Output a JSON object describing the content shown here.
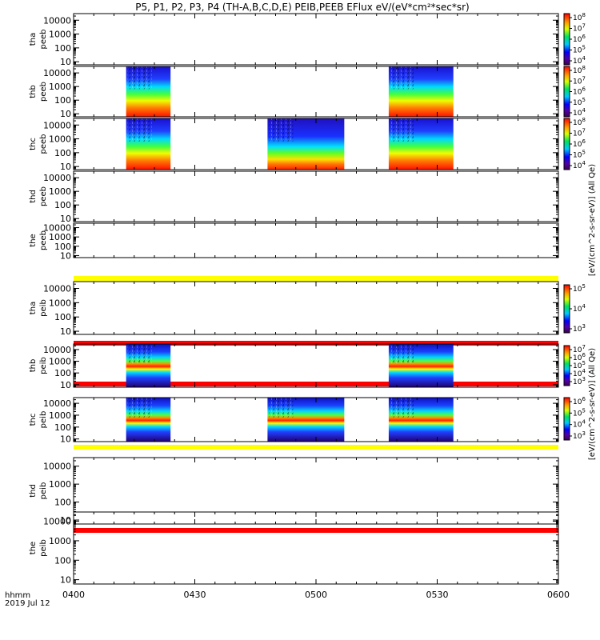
{
  "chart_data": {
    "type": "heatmap",
    "title": "P5, P1, P2, P3, P4 (TH-A,B,C,D,E) PEIB,PEEB EFlux eV/(eV*cm²*sec*sr)",
    "x_axis": {
      "label_top": "hhmm",
      "label_bottom": "2019 Jul 12",
      "range": [
        "0400",
        "0600"
      ],
      "tick_labels": [
        "0400",
        "0430",
        "0500",
        "0530",
        "0600"
      ]
    },
    "y_tick_labels": [
      "10",
      "100",
      "1000",
      "10000"
    ],
    "y_scale": "log",
    "y_range_eV": [
      6,
      30000
    ],
    "colorbar_label_electrons": "[eV/(cm^2-s-sr-eV)] (All Qe)",
    "colorbar_label_ions": "[eV/(cm^2-s-sr-eV)] (All Qe)",
    "colormap": "rainbow (violet-blue-cyan-green-yellow-red)",
    "panels": [
      {
        "probe": "tha",
        "label": "tha peeb",
        "species": "electrons",
        "bands_hhmm": [],
        "colorbar": "electrons"
      },
      {
        "probe": "thb",
        "label": "thb peeb",
        "species": "electrons",
        "bands_hhmm": [
          [
            "0413",
            "0424"
          ],
          [
            "0518",
            "0534"
          ]
        ],
        "colorbar": "electrons"
      },
      {
        "probe": "thc",
        "label": "thc peeb",
        "species": "electrons",
        "bands_hhmm": [
          [
            "0413",
            "0424"
          ],
          [
            "0448",
            "0507"
          ],
          [
            "0518",
            "0534"
          ]
        ],
        "colorbar": "electrons"
      },
      {
        "probe": "thd",
        "label": "thd peeb",
        "species": "electrons",
        "bands_hhmm": [],
        "colorbar": "none"
      },
      {
        "probe": "the",
        "label": "the peeb",
        "species": "electrons",
        "bands_hhmm": [],
        "colorbar": "none"
      },
      {
        "probe": "tha",
        "label": "tha peib",
        "species": "ions",
        "bands_hhmm": [],
        "colorbar": "ions-a"
      },
      {
        "probe": "thb",
        "label": "thb peib",
        "species": "ions",
        "bands_hhmm": [
          [
            "0413",
            "0424"
          ],
          [
            "0518",
            "0534"
          ]
        ],
        "colorbar": "ions-b"
      },
      {
        "probe": "thc",
        "label": "thc peib",
        "species": "ions",
        "bands_hhmm": [
          [
            "0413",
            "0424"
          ],
          [
            "0448",
            "0507"
          ],
          [
            "0518",
            "0534"
          ]
        ],
        "colorbar": "ions-c"
      },
      {
        "probe": "thd",
        "label": "thd peib",
        "species": "ions",
        "bands_hhmm": [],
        "colorbar": "none"
      },
      {
        "probe": "the",
        "label": "the peib",
        "species": "ions",
        "bands_hhmm": [],
        "colorbar": "none"
      }
    ],
    "colorbars": {
      "electrons": {
        "tick_exponents": [
          4,
          5,
          6,
          7,
          8
        ]
      },
      "ions-a": {
        "tick_exponents": [
          3,
          4,
          5
        ]
      },
      "ions-b": {
        "tick_exponents": [
          3,
          4,
          5,
          6,
          7
        ]
      },
      "ions-c": {
        "tick_exponents": [
          3,
          4,
          5,
          6
        ]
      }
    },
    "colors": {
      "yellow_strip": "#ffff00",
      "red_strip": "#ff0000",
      "grid": "none"
    }
  }
}
